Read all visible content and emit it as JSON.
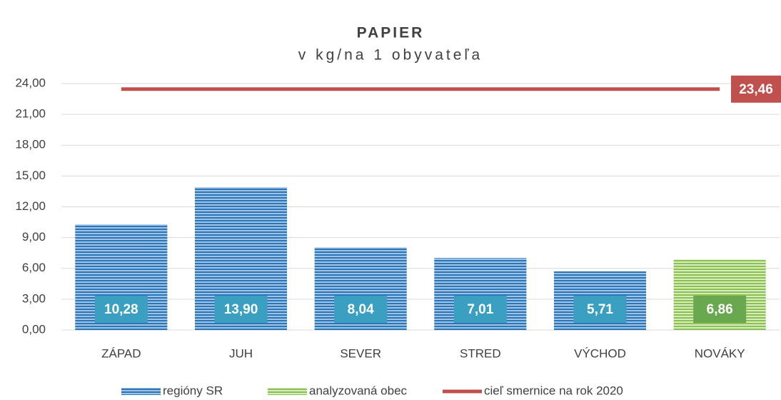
{
  "chart_data": {
    "type": "bar",
    "title": "PAPIER",
    "subtitle": "v kg/na 1 obyvateľa",
    "categories": [
      "ZÁPAD",
      "JUH",
      "SEVER",
      "STRED",
      "VÝCHOD",
      "NOVÁKY"
    ],
    "series": [
      {
        "name": "regióny SR",
        "color": "#2e75b6",
        "label_color": "#3a9fc0",
        "values": [
          10.28,
          13.9,
          8.04,
          7.01,
          5.71,
          null
        ],
        "value_labels": [
          "10,28",
          "13,90",
          "8,04",
          "7,01",
          "5,71",
          null
        ]
      },
      {
        "name": "analyzovaná obec",
        "color": "#8cc152",
        "label_color": "#6aa84f",
        "values": [
          null,
          null,
          null,
          null,
          null,
          6.86
        ],
        "value_labels": [
          null,
          null,
          null,
          null,
          null,
          "6,86"
        ]
      }
    ],
    "target": {
      "name": "cieľ smernice na rok 2020",
      "color": "#c0504d",
      "value": 23.46,
      "value_label": "23,46"
    },
    "ylim": [
      0,
      24
    ],
    "yticks": [
      {
        "value": 0,
        "label": "0,00"
      },
      {
        "value": 3,
        "label": "3,00"
      },
      {
        "value": 6,
        "label": "6,00"
      },
      {
        "value": 9,
        "label": "9,00"
      },
      {
        "value": 12,
        "label": "12,00"
      },
      {
        "value": 15,
        "label": "15,00"
      },
      {
        "value": 18,
        "label": "18,00"
      },
      {
        "value": 21,
        "label": "21,00"
      },
      {
        "value": 24,
        "label": "24,00"
      }
    ],
    "grid": true
  }
}
